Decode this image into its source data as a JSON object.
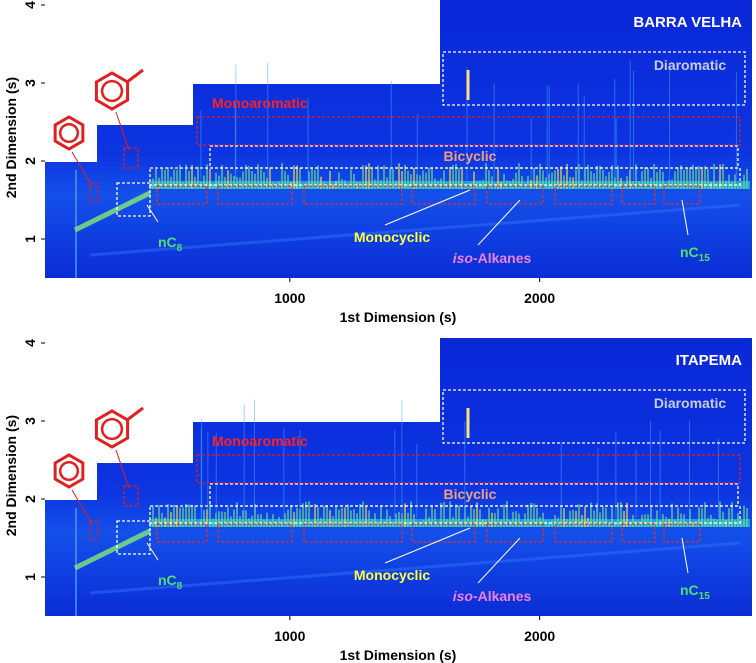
{
  "chart_data": [
    {
      "type": "heatmap",
      "title": "BARRA VELHA",
      "x_label": "1st Dimension (s)",
      "y_label": "2nd Dimension (s)",
      "xlim": [
        20,
        2850
      ],
      "ylim": [
        0.5,
        4
      ],
      "xticks": [
        1000,
        2000
      ],
      "yticks": [
        1,
        2,
        3,
        4
      ],
      "annotations": {
        "diaromatic": "Diaromatic",
        "monoaromatic": "Monoaromatic",
        "bicyclic": "Bicyclic",
        "monocyclic": "Monocyclic",
        "iso_alkanes": {
          "italic": "iso",
          "text": "-Alkanes"
        },
        "nc8": {
          "text": "nC",
          "subscript": "8"
        },
        "nc15": {
          "text": "nC",
          "subscript": "15"
        }
      }
    },
    {
      "type": "heatmap",
      "title": "ITAPEMA",
      "x_label": "1st Dimension (s)",
      "y_label": "2nd Dimension (s)",
      "xlim": [
        20,
        2850
      ],
      "ylim": [
        0.5,
        4
      ],
      "xticks": [
        1000,
        2000
      ],
      "yticks": [
        1,
        2,
        3,
        4
      ],
      "annotations": {
        "diaromatic": "Diaromatic",
        "monoaromatic": "Monoaromatic",
        "bicyclic": "Bicyclic",
        "monocyclic": "Monocyclic",
        "iso_alkanes": {
          "italic": "iso",
          "text": "-Alkanes"
        },
        "nc8": {
          "text": "nC",
          "subscript": "8"
        },
        "nc15": {
          "text": "nC",
          "subscript": "15"
        }
      }
    }
  ]
}
